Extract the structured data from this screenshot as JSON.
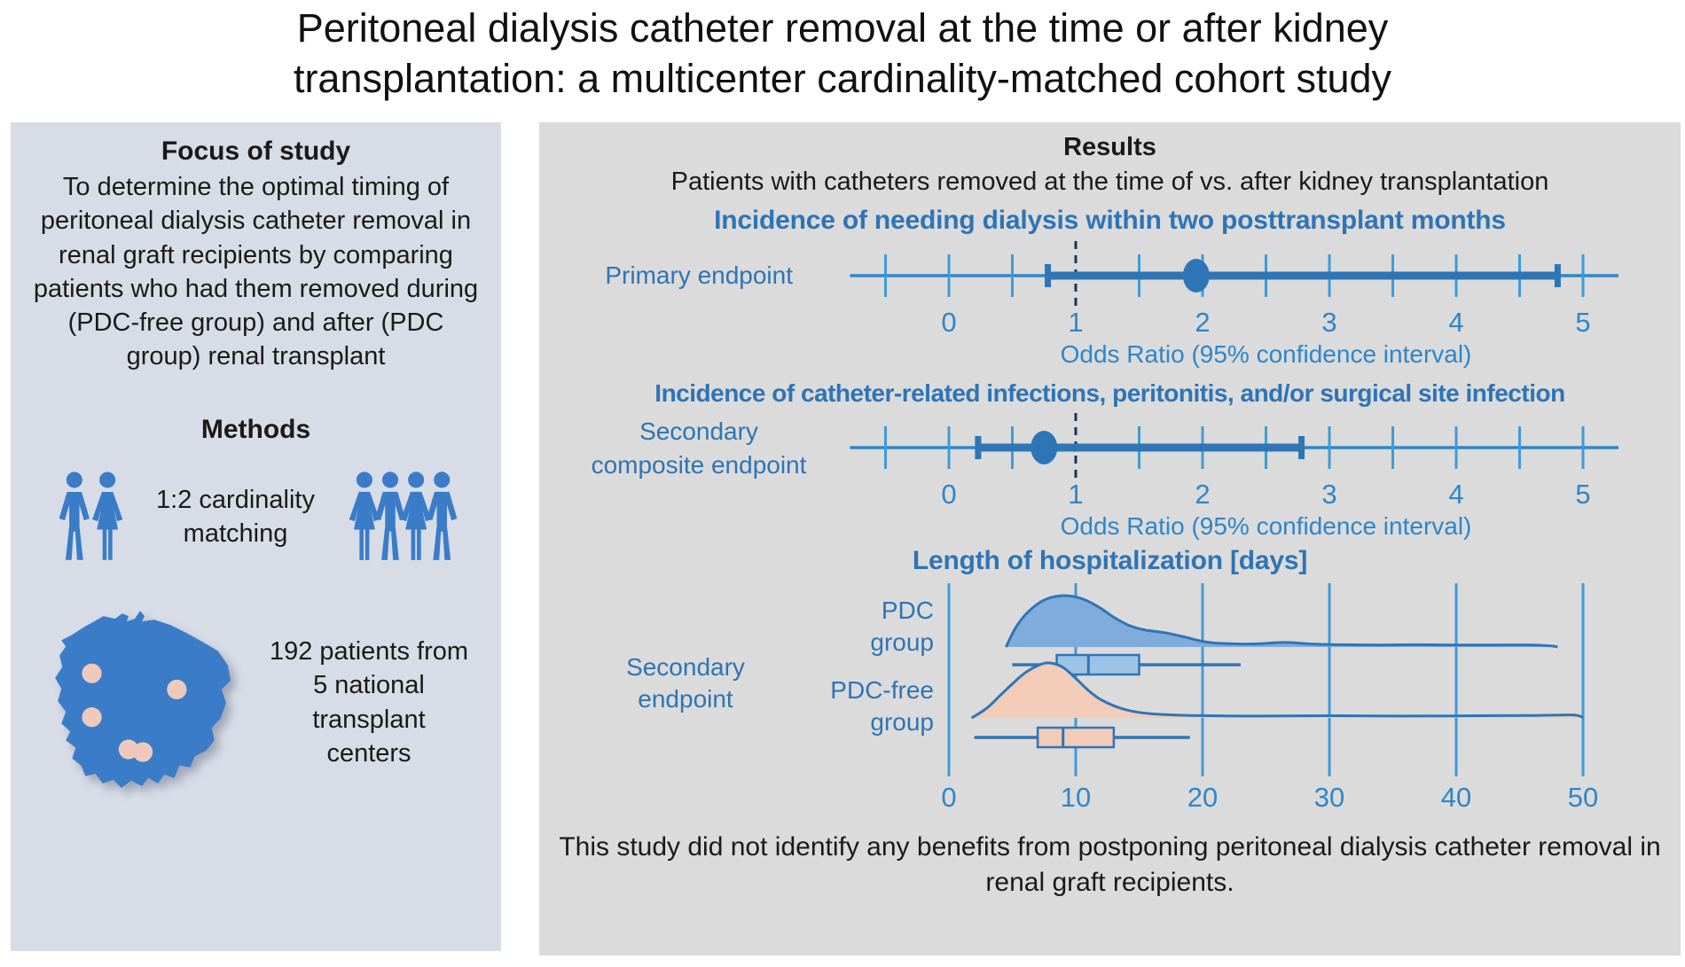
{
  "title": "Peritoneal dialysis catheter removal at the time or after kidney transplantation: a multicenter cardinality-matched cohort study",
  "left_panel": {
    "focus_heading": "Focus of study",
    "focus_text": "To determine the optimal timing of peritoneal dialysis catheter removal in renal graft recipients by comparing patients who had them removed during (PDC-free group) and after (PDC group) renal transplant",
    "methods_heading": "Methods",
    "matching_lines": [
      "1:2 cardinality",
      "matching"
    ],
    "map_caption_lines": [
      "192 patients from",
      "5 national",
      "transplant",
      "centers"
    ],
    "icons": [
      "man-woman-pair-icon",
      "four-people-icon",
      "poland-map"
    ]
  },
  "right_panel": {
    "results_heading": "Results",
    "results_subheading": "Patients with catheters removed at the time of vs. after kidney transplantation",
    "conclusion": "This study did not identify any benefits from postponing peritoneal dialysis catheter removal in renal graft recipients."
  },
  "chart_data": [
    {
      "type": "forest",
      "title": "Incidence of needing dialysis within two posttransplant months",
      "label_lines": [
        "Primary endpoint"
      ],
      "label_anchor": "end",
      "point": 1.95,
      "ci": [
        0.78,
        4.8
      ],
      "reference_line": 1,
      "ticks": [
        0,
        1,
        2,
        3,
        4,
        5
      ],
      "minor_tick_step": 0.5,
      "minor_tick_range": [
        -0.5,
        5
      ],
      "xlim": [
        -0.78,
        5.28
      ],
      "xlabel": "Odds Ratio (95% confidence interval)"
    },
    {
      "type": "forest",
      "title": "Incidence of catheter-related infections, peritonitis, and/or surgical site infection",
      "label_lines": [
        "Secondary",
        "composite endpoint"
      ],
      "label_anchor": "middle",
      "point": 0.75,
      "ci": [
        0.23,
        2.78
      ],
      "reference_line": 1,
      "ticks": [
        0,
        1,
        2,
        3,
        4,
        5
      ],
      "minor_tick_step": 0.5,
      "minor_tick_range": [
        -0.5,
        5
      ],
      "xlim": [
        -0.78,
        5.28
      ],
      "xlabel": "Odds Ratio (95% confidence interval)"
    },
    {
      "type": "ridge-box",
      "title": "Length of hospitalization [days]",
      "label_lines": [
        "Secondary",
        "endpoint"
      ],
      "ticks": [
        0,
        10,
        20,
        30,
        40,
        50
      ],
      "xlim": [
        0,
        50
      ],
      "groups": [
        {
          "name": "PDC group",
          "name_lines": [
            "PDC",
            "group"
          ],
          "density": [
            [
              4.5,
              0
            ],
            [
              5.2,
              0.35
            ],
            [
              6,
              0.62
            ],
            [
              7,
              0.84
            ],
            [
              8,
              0.96
            ],
            [
              9.2,
              1.0
            ],
            [
              10.5,
              0.94
            ],
            [
              11.8,
              0.78
            ],
            [
              13,
              0.58
            ],
            [
              14.2,
              0.42
            ],
            [
              15.5,
              0.33
            ],
            [
              17,
              0.28
            ],
            [
              18.5,
              0.2
            ],
            [
              20,
              0.11
            ],
            [
              21.5,
              0.07
            ],
            [
              24,
              0.06
            ],
            [
              26.5,
              0.09
            ],
            [
              28.5,
              0.06
            ],
            [
              31,
              0.045
            ],
            [
              34,
              0.04
            ],
            [
              37,
              0.045
            ],
            [
              40,
              0.04
            ],
            [
              43,
              0.04
            ],
            [
              46,
              0.04
            ],
            [
              47.5,
              0.02
            ],
            [
              48,
              0
            ]
          ],
          "box": {
            "whisker_low": 5,
            "q1": 8.5,
            "median": 11,
            "q3": 15,
            "whisker_high": 23
          },
          "fill": "#7FACDB",
          "box_fill": "#9DC3E6"
        },
        {
          "name": "PDC-free group",
          "name_lines": [
            "PDC-free",
            "group"
          ],
          "density": [
            [
              1.8,
              0
            ],
            [
              3,
              0.18
            ],
            [
              4,
              0.4
            ],
            [
              5,
              0.62
            ],
            [
              6,
              0.82
            ],
            [
              7.2,
              0.97
            ],
            [
              8,
              1.0
            ],
            [
              9,
              0.92
            ],
            [
              10,
              0.72
            ],
            [
              11,
              0.5
            ],
            [
              12,
              0.33
            ],
            [
              13.5,
              0.18
            ],
            [
              15,
              0.1
            ],
            [
              17,
              0.06
            ],
            [
              19,
              0.045
            ],
            [
              22,
              0.035
            ],
            [
              26,
              0.035
            ],
            [
              30,
              0.04
            ],
            [
              34,
              0.035
            ],
            [
              38,
              0.035
            ],
            [
              42,
              0.04
            ],
            [
              46,
              0.045
            ],
            [
              49,
              0.055
            ],
            [
              49.8,
              0.03
            ],
            [
              50,
              0
            ]
          ],
          "box": {
            "whisker_low": 2,
            "q1": 7,
            "median": 9,
            "q3": 13,
            "whisker_high": 19
          },
          "fill": "#F2CBB9",
          "box_fill": "#F2CBB9"
        }
      ]
    }
  ],
  "colors": {
    "left_panel_bg": "#D7DCE7",
    "right_panel_bg": "#DBDBDB",
    "text_black": "#1A1A1A",
    "heading_blue": "#2E74B5",
    "axis_blue": "#2E86C8",
    "tick_blue": "#3F9BD8",
    "bar_blue": "#2E75B6",
    "ref_navy": "#17365D",
    "icon_blue": "#3A7CC8",
    "map_blue": "#3A7CC8",
    "dot_pink": "#EFC9BA"
  }
}
